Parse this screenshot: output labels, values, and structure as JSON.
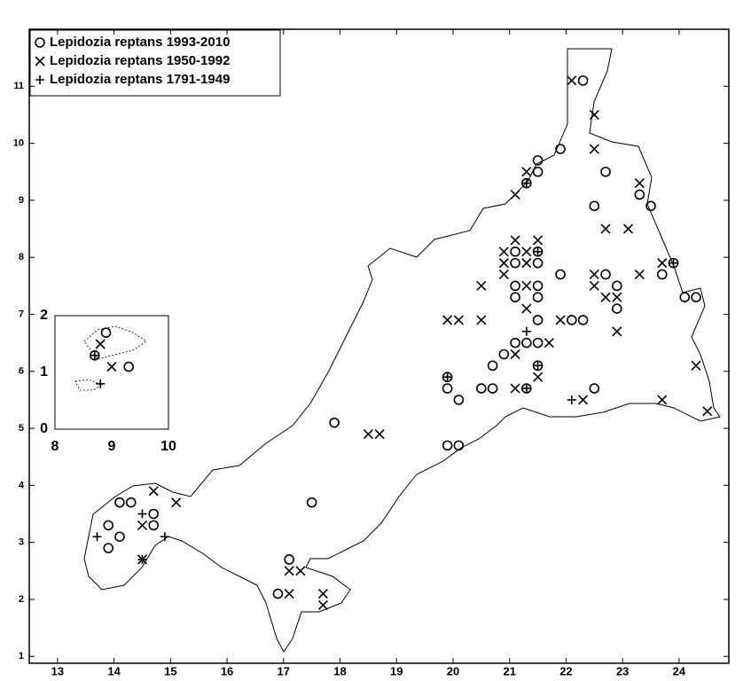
{
  "chart_data": [
    {
      "type": "scatter",
      "xlim": [
        12.5,
        24.88
      ],
      "ylim": [
        0.88,
        12.0
      ],
      "xticks": [
        13,
        14,
        15,
        16,
        17,
        18,
        19,
        20,
        21,
        22,
        23,
        24
      ],
      "yticks": [
        1,
        2,
        3,
        4,
        5,
        6,
        7,
        8,
        9,
        10,
        11
      ],
      "series": [
        {
          "name": "Lepidozia reptans 1993-2010",
          "marker": "o",
          "color": "#000000",
          "x": [
            22.3,
            21.9,
            21.5,
            21.5,
            21.3,
            22.7,
            22.5,
            23.3,
            23.5,
            21.1,
            21.1,
            21.5,
            21.5,
            21.9,
            22.7,
            22.9,
            21.1,
            21.1,
            21.5,
            21.5,
            22.9,
            23.7,
            23.9,
            24.1,
            24.3,
            22.1,
            22.3,
            21.5,
            21.1,
            21.3,
            21.5,
            20.9,
            20.7,
            21.5,
            19.9,
            19.9,
            20.5,
            20.7,
            21.3,
            22.5,
            20.1,
            19.9,
            20.1,
            17.9,
            17.5,
            17.1,
            16.9,
            14.1,
            14.3,
            13.9,
            14.1,
            13.9,
            14.7,
            14.7
          ],
          "values": [
            11.1,
            9.9,
            9.7,
            9.5,
            9.3,
            9.5,
            8.9,
            9.1,
            8.9,
            8.1,
            7.9,
            8.1,
            7.9,
            7.7,
            7.7,
            7.5,
            7.5,
            7.3,
            7.5,
            7.3,
            7.1,
            7.7,
            7.9,
            7.3,
            7.3,
            6.9,
            6.9,
            6.9,
            6.5,
            6.5,
            6.5,
            6.3,
            6.1,
            6.1,
            5.9,
            5.7,
            5.7,
            5.7,
            5.7,
            5.7,
            5.5,
            4.7,
            4.7,
            5.1,
            3.7,
            2.7,
            2.1,
            3.7,
            3.7,
            3.3,
            3.1,
            2.9,
            3.5,
            3.3
          ]
        },
        {
          "name": "Lepidozia reptans 1950-1992",
          "marker": "x",
          "color": "#000000",
          "x": [
            22.1,
            22.5,
            22.5,
            23.3,
            21.1,
            21.3,
            22.7,
            23.1,
            21.1,
            21.5,
            20.9,
            20.9,
            20.9,
            21.3,
            21.3,
            20.5,
            21.3,
            22.5,
            22.5,
            23.3,
            23.7,
            22.7,
            22.9,
            19.9,
            20.1,
            20.5,
            21.9,
            21.3,
            21.7,
            22.9,
            21.1,
            21.5,
            21.1,
            22.3,
            23.7,
            24.3,
            24.5,
            18.5,
            18.7,
            14.7,
            15.1,
            14.5,
            14.5,
            17.1,
            17.1,
            17.3,
            17.7,
            17.7
          ],
          "values": [
            11.1,
            10.5,
            9.9,
            9.3,
            9.1,
            9.5,
            8.5,
            8.5,
            8.3,
            8.3,
            8.1,
            7.9,
            7.7,
            8.1,
            7.9,
            7.5,
            7.5,
            7.7,
            7.5,
            7.7,
            7.9,
            7.3,
            7.3,
            6.9,
            6.9,
            6.9,
            6.9,
            7.1,
            6.5,
            6.7,
            6.3,
            5.9,
            5.7,
            5.5,
            5.5,
            6.1,
            5.3,
            4.9,
            4.9,
            3.9,
            3.7,
            3.3,
            2.7,
            2.1,
            2.5,
            2.5,
            2.1,
            1.9
          ]
        },
        {
          "name": "Lepidozia reptans 1791-1949",
          "marker": "+",
          "color": "#000000",
          "x": [
            21.3,
            21.5,
            21.3,
            21.3,
            21.5,
            22.1,
            23.9,
            14.5,
            13.7,
            14.9,
            14.5,
            19.9
          ],
          "values": [
            9.3,
            8.1,
            6.7,
            5.7,
            6.1,
            5.5,
            7.9,
            3.5,
            3.1,
            3.1,
            2.7,
            5.9
          ]
        }
      ]
    },
    {
      "type": "scatter",
      "xlim": [
        8,
        10
      ],
      "ylim": [
        0,
        2
      ],
      "xticks": [
        8,
        9,
        10
      ],
      "yticks": [
        0,
        1,
        2
      ],
      "series": [
        {
          "marker": "o",
          "color": "#000000",
          "x": [
            8.9,
            8.7,
            9.3
          ],
          "values": [
            1.7,
            1.3,
            1.1
          ]
        },
        {
          "marker": "x",
          "color": "#000000",
          "x": [
            9.0,
            8.8
          ],
          "values": [
            1.1,
            1.5
          ]
        },
        {
          "marker": "+",
          "color": "#000000",
          "x": [
            8.7,
            8.8
          ],
          "values": [
            1.3,
            0.8
          ]
        }
      ]
    }
  ]
}
